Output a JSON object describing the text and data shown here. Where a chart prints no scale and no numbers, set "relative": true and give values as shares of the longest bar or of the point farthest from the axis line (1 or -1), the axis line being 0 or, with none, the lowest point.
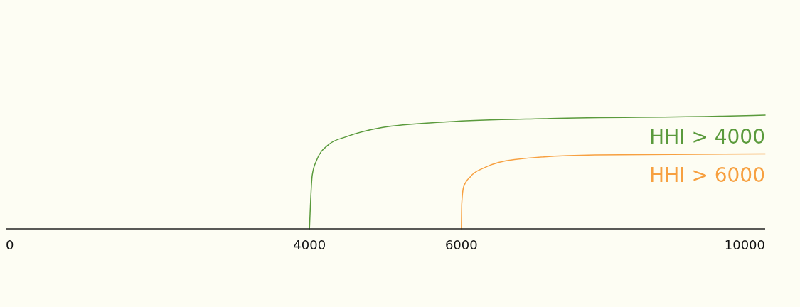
{
  "chart_data": {
    "type": "line",
    "relative": true,
    "xlim": [
      0,
      10000
    ],
    "xticks": [
      0,
      4000,
      6000,
      10000
    ],
    "series": [
      {
        "name": "HHI > 4000",
        "color": "#5a9a3c",
        "x": [
          4000,
          4036,
          4092,
          4251,
          4485,
          4953,
          5805,
          7172,
          9401,
          10000
        ],
        "values": [
          0,
          0.47,
          0.6,
          0.74,
          0.81,
          0.89,
          0.94,
          0.97,
          0.99,
          1
        ]
      },
      {
        "name": "HHI > 6000",
        "color": "#f7a040",
        "x": [
          6000,
          6005,
          6030,
          6120,
          6310,
          6700,
          7760,
          10000
        ],
        "values": [
          0,
          0.22,
          0.37,
          0.46,
          0.54,
          0.61,
          0.65,
          0.66
        ]
      }
    ]
  }
}
